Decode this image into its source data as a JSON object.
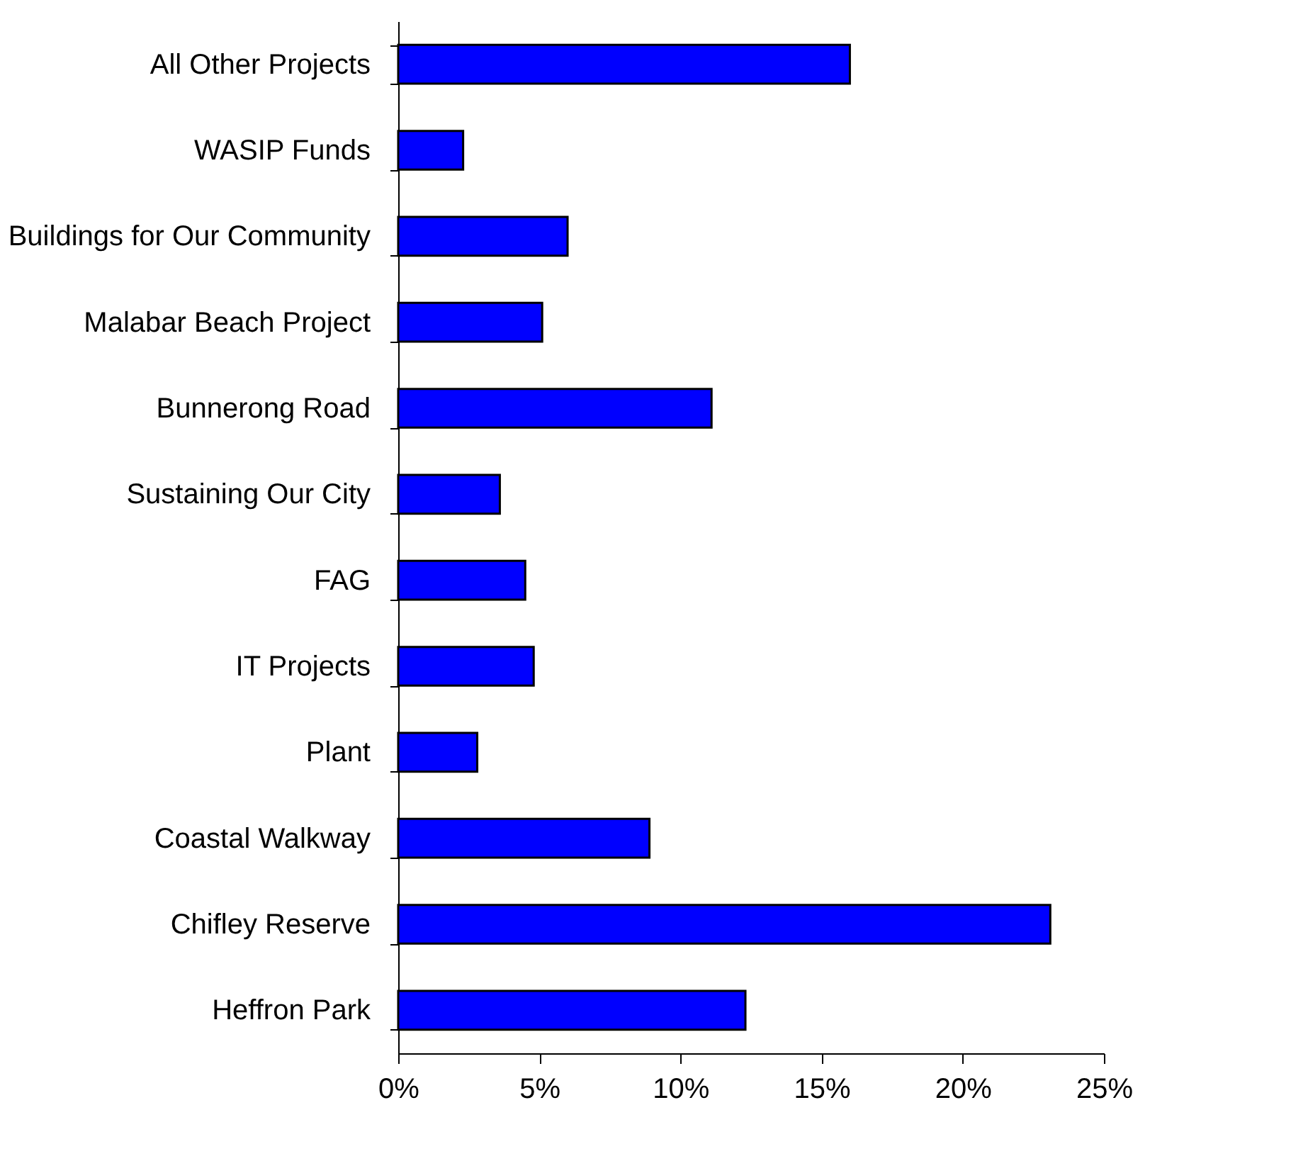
{
  "chart_data": {
    "type": "bar",
    "orientation": "horizontal",
    "categories": [
      "All Other Projects",
      "WASIP Funds",
      "Buildings for Our Community",
      "Malabar Beach Project",
      "Bunnerong Road",
      "Sustaining Our City",
      "FAG",
      "IT Projects",
      "Plant",
      "Coastal Walkway",
      "Chifley Reserve",
      "Heffron Park"
    ],
    "values": [
      16.0,
      2.3,
      6.0,
      5.1,
      11.1,
      3.6,
      4.5,
      4.8,
      2.8,
      8.9,
      23.1,
      12.3
    ],
    "color": "#0000ff",
    "xlim": [
      0,
      25
    ],
    "xticks": [
      {
        "value": 0,
        "label": "0%"
      },
      {
        "value": 5,
        "label": "5%"
      },
      {
        "value": 10,
        "label": "10%"
      },
      {
        "value": 15,
        "label": "15%"
      },
      {
        "value": 20,
        "label": "20%"
      },
      {
        "value": 25,
        "label": "25%"
      }
    ],
    "grid": false
  }
}
